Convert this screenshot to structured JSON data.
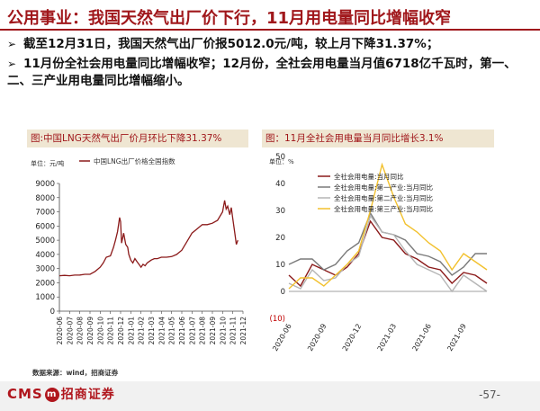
{
  "slide": {
    "title": "公用事业：我国天然气出厂价下行，11月用电量同比增幅收窄",
    "bullets": [
      "截至12月31日，我国天然气出厂价报5012.0元/吨，较上月下降31.37%；",
      "11月份全社会用电量同比增幅收窄；12月份，全社会用电量当月值6718亿千瓦时，第一、二、三产业用电量同比增幅缩小。"
    ],
    "bullet_mark": "➢",
    "source": "数据来源：wind，招商证券",
    "logo_text": "CMS",
    "logo_badge": "m",
    "logo_cn": "招商证券",
    "page_number": "-57-"
  },
  "chart_data": [
    {
      "type": "line",
      "title": "图:中国LNG天然气出厂价月环比下降31.37%",
      "unit_label": "单位：元/吨",
      "legend": [
        "中国LNG出厂价格全国指数"
      ],
      "ylim": [
        0,
        9000
      ],
      "yticks": [
        0,
        1000,
        2000,
        3000,
        4000,
        5000,
        6000,
        7000,
        8000,
        9000
      ],
      "xticks": [
        "2020-06",
        "2020-07",
        "2020-08",
        "2020-09",
        "2020-10",
        "2020-11",
        "2020-12",
        "2021-01",
        "2021-02",
        "2021-03",
        "2021-04",
        "2021-05",
        "2021-06",
        "2021-07",
        "2021-08",
        "2021-09",
        "2021-10",
        "2021-11",
        "2021-12"
      ],
      "series": [
        {
          "name": "中国LNG出厂价格全国指数",
          "color": "#8b1a1a",
          "points": [
            [
              0,
              2500
            ],
            [
              0.5,
              2520
            ],
            [
              1,
              2500
            ],
            [
              1.5,
              2540
            ],
            [
              2,
              2550
            ],
            [
              2.5,
              2600
            ],
            [
              3,
              2600
            ],
            [
              3.5,
              2800
            ],
            [
              4,
              3100
            ],
            [
              4.3,
              3400
            ],
            [
              4.6,
              3800
            ],
            [
              5,
              3900
            ],
            [
              5.3,
              4500
            ],
            [
              5.5,
              5000
            ],
            [
              5.7,
              5600
            ],
            [
              5.9,
              6600
            ],
            [
              6.0,
              6300
            ],
            [
              6.1,
              4800
            ],
            [
              6.3,
              5500
            ],
            [
              6.5,
              4700
            ],
            [
              6.7,
              4500
            ],
            [
              6.8,
              4000
            ],
            [
              6.9,
              3800
            ],
            [
              7.0,
              3600
            ],
            [
              7.2,
              3400
            ],
            [
              7.4,
              3700
            ],
            [
              7.6,
              3500
            ],
            [
              7.8,
              3300
            ],
            [
              8.0,
              3100
            ],
            [
              8.2,
              3300
            ],
            [
              8.4,
              3200
            ],
            [
              8.6,
              3400
            ],
            [
              8.8,
              3500
            ],
            [
              9.0,
              3600
            ],
            [
              9.3,
              3700
            ],
            [
              9.6,
              3700
            ],
            [
              10,
              3800
            ],
            [
              10.5,
              3800
            ],
            [
              11,
              3850
            ],
            [
              11.5,
              4000
            ],
            [
              12,
              4300
            ],
            [
              12.5,
              4900
            ],
            [
              13,
              5500
            ],
            [
              13.5,
              5800
            ],
            [
              14,
              6100
            ],
            [
              14.5,
              6100
            ],
            [
              15,
              6200
            ],
            [
              15.5,
              6400
            ],
            [
              16,
              7000
            ],
            [
              16.2,
              7800
            ],
            [
              16.35,
              7200
            ],
            [
              16.5,
              7400
            ],
            [
              16.7,
              6800
            ],
            [
              16.85,
              7300
            ],
            [
              17.0,
              6500
            ],
            [
              17.2,
              5500
            ],
            [
              17.35,
              4700
            ],
            [
              17.5,
              5000
            ]
          ]
        }
      ]
    },
    {
      "type": "line",
      "title": "图：11月全社会用电量当月同比增长3.1%",
      "unit_label": "单位：%",
      "ylim": [
        -10,
        50
      ],
      "yticks": [
        50,
        40,
        30,
        20,
        10,
        0,
        -10
      ],
      "ytick_labels": [
        "50",
        "40",
        "30",
        "20",
        "10",
        "0",
        "(10)"
      ],
      "xticks": [
        "2020-06",
        "2020-09",
        "2020-12",
        "2021-03",
        "2021-06",
        "2021-09"
      ],
      "x": [
        "2020-06",
        "2020-07",
        "2020-08",
        "2020-09",
        "2020-10",
        "2020-11",
        "2020-12",
        "2021-01",
        "2021-02",
        "2021-03",
        "2021-04",
        "2021-05",
        "2021-06",
        "2021-07",
        "2021-08",
        "2021-09",
        "2021-10",
        "2021-11"
      ],
      "series": [
        {
          "name": "全社会用电量:当月同比",
          "color": "#8b1a1a",
          "values": [
            6,
            2,
            10,
            8,
            6,
            9,
            14,
            26,
            20,
            19,
            14,
            12,
            9,
            8,
            3,
            7,
            6,
            3
          ]
        },
        {
          "name": "全社会用电量:第一产业:当月同比",
          "color": "#7a7a7a",
          "values": [
            10,
            12,
            12,
            8,
            10,
            15,
            18,
            29,
            22,
            21,
            19,
            14,
            13,
            11,
            6,
            9,
            14,
            14
          ]
        },
        {
          "name": "全社会用电量:第二产业:当月同比",
          "color": "#b5b5b5",
          "values": [
            3,
            1,
            8,
            4,
            5,
            10,
            13,
            28,
            22,
            21,
            15,
            10,
            8,
            6,
            0,
            6,
            3,
            0
          ]
        },
        {
          "name": "全社会用电量:第三产业:当月同比",
          "color": "#f2c12e",
          "values": [
            1,
            5,
            5,
            2,
            6,
            10,
            15,
            30,
            47,
            35,
            25,
            22,
            18,
            15,
            8,
            14,
            11,
            8
          ]
        }
      ]
    }
  ]
}
